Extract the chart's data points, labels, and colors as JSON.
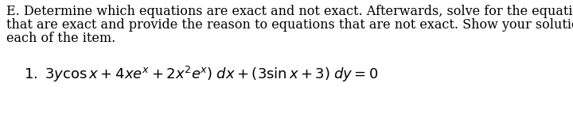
{
  "line1": "E. Determine which equations are exact and not exact. Afterwards, solve for the equations",
  "line2": "that are exact and provide the reason to equations that are not exact. Show your solutions for",
  "line3": "each of the item.",
  "eq_text": "$\\mathrm{1.}\\ 3y\\cos x + 4xe^{x} + 2x^{2}e^{x})\\;dx + (3\\sin x + 3)\\;dy = 0$",
  "font_size_body": 11.5,
  "font_size_eq": 13.0,
  "text_color": "#000000",
  "bg_color": "#ffffff",
  "fig_width": 7.2,
  "fig_height": 1.53,
  "dpi": 100
}
